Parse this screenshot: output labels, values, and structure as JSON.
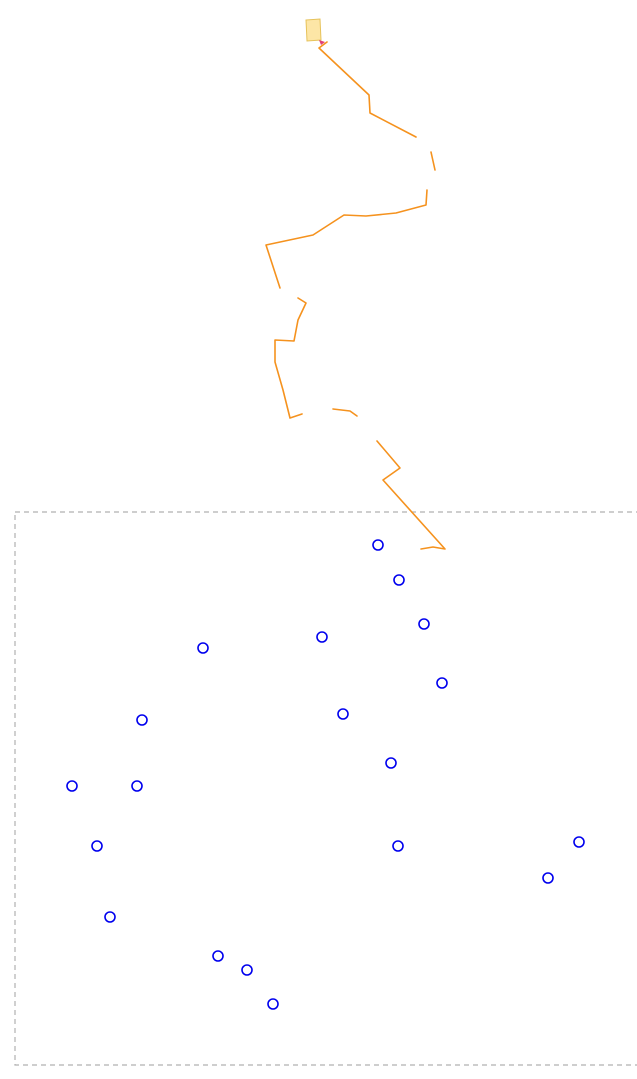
{
  "colors": {
    "background": "#ffffff",
    "path": "#f5921e",
    "target": "#0000ee",
    "arena_border": "#b0b0b0",
    "start_marker_fill": "#fde6a6",
    "start_marker_stroke": "#e6c25a",
    "cursor_tip": "#e0407a"
  },
  "icons": {
    "start_marker": "start-marker-icon",
    "cursor_tip": "cursor-tip-icon"
  },
  "targets": [
    {
      "id": "t1"
    },
    {
      "id": "t2"
    },
    {
      "id": "t3"
    },
    {
      "id": "t4"
    },
    {
      "id": "t5"
    },
    {
      "id": "t6"
    },
    {
      "id": "t7"
    },
    {
      "id": "t8"
    },
    {
      "id": "t9"
    },
    {
      "id": "t10"
    },
    {
      "id": "t11"
    },
    {
      "id": "t12"
    },
    {
      "id": "t13"
    },
    {
      "id": "t14"
    },
    {
      "id": "t15"
    },
    {
      "id": "t16"
    },
    {
      "id": "t17"
    },
    {
      "id": "t18"
    },
    {
      "id": "t19"
    }
  ]
}
